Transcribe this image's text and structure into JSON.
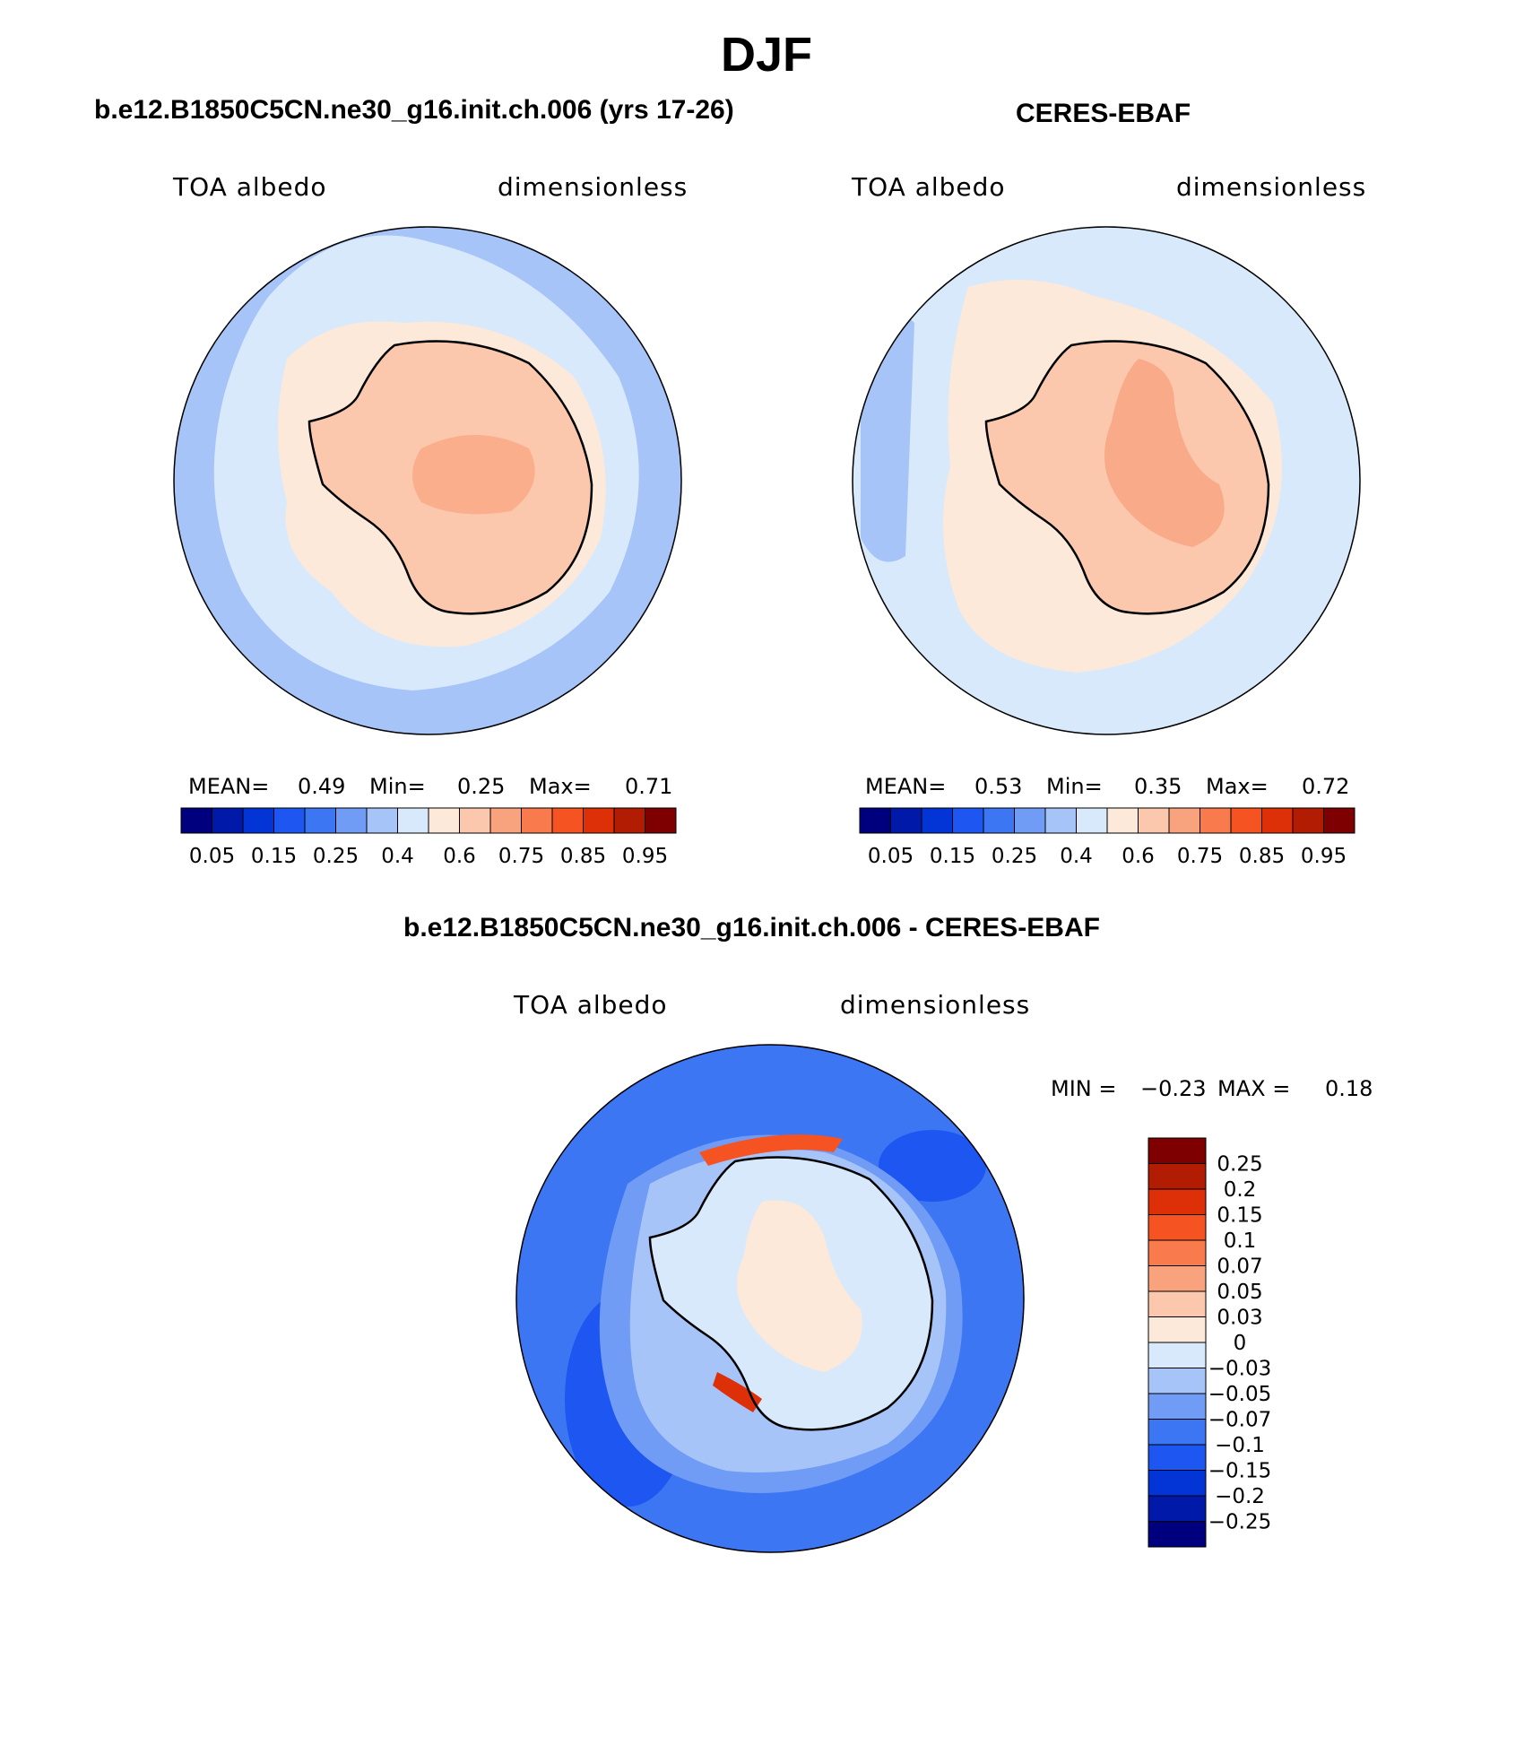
{
  "figure": {
    "title": "DJF"
  },
  "panels": [
    {
      "title": "b.e12.B1850C5CN.ne30_g16.init.ch.006 (yrs 17-26)",
      "variable": "TOA albedo",
      "units": "dimensionless",
      "stats": {
        "mean_label": "MEAN=",
        "mean": "0.49",
        "min_label": "Min=",
        "min": "0.25",
        "max_label": "Max=",
        "max": "0.71"
      }
    },
    {
      "title": "CERES-EBAF",
      "variable": "TOA albedo",
      "units": "dimensionless",
      "stats": {
        "mean_label": "MEAN=",
        "mean": "0.53",
        "min_label": "Min=",
        "min": "0.35",
        "max_label": "Max=",
        "max": "0.72"
      }
    },
    {
      "title": "b.e12.B1850C5CN.ne30_g16.init.ch.006 - CERES-EBAF",
      "variable": "TOA albedo",
      "units": "dimensionless",
      "stats": {
        "min_label": "MIN =",
        "min": "−0.23",
        "max_label": "MAX =",
        "max": "0.18"
      }
    }
  ],
  "chart_data": [
    {
      "type": "heatmap",
      "projection": "south-polar-stereographic",
      "title": "b.e12.B1850C5CN.ne30_g16.init.ch.006 (yrs 17-26)",
      "variable": "TOA albedo",
      "units": "dimensionless",
      "mean": 0.49,
      "min": 0.25,
      "max": 0.71,
      "legend_position": "bottom",
      "colorbar_ticks": [
        "0.05",
        "0.15",
        "0.25",
        "0.4",
        "0.6",
        "0.75",
        "0.85",
        "0.95"
      ],
      "colorbar_colors": [
        "#00007f",
        "#0019a8",
        "#0335d6",
        "#1d56f0",
        "#3d76f2",
        "#709cf5",
        "#a6c4f8",
        "#d8e9fb",
        "#fde9d9",
        "#fbc8ad",
        "#f9a27e",
        "#f87a4d",
        "#f65323",
        "#dd3008",
        "#b11c02",
        "#7f0000"
      ],
      "fields": {
        "open_ocean": 0.35,
        "mid_latitude_band": 0.42,
        "sea_ice_band": 0.6,
        "continent": 0.65,
        "east_antarctic_plateau": 0.71
      }
    },
    {
      "type": "heatmap",
      "projection": "south-polar-stereographic",
      "title": "CERES-EBAF",
      "variable": "TOA albedo",
      "units": "dimensionless",
      "mean": 0.53,
      "min": 0.35,
      "max": 0.72,
      "legend_position": "bottom",
      "colorbar_ticks": [
        "0.05",
        "0.15",
        "0.25",
        "0.4",
        "0.6",
        "0.75",
        "0.85",
        "0.95"
      ],
      "colorbar_colors": [
        "#00007f",
        "#0019a8",
        "#0335d6",
        "#1d56f0",
        "#3d76f2",
        "#709cf5",
        "#a6c4f8",
        "#d8e9fb",
        "#fde9d9",
        "#fbc8ad",
        "#f9a27e",
        "#f87a4d",
        "#f65323",
        "#dd3008",
        "#b11c02",
        "#7f0000"
      ],
      "fields": {
        "open_ocean": 0.42,
        "sea_ice_band": 0.55,
        "continent": 0.65,
        "east_antarctic_plateau": 0.72
      }
    },
    {
      "type": "heatmap",
      "projection": "south-polar-stereographic",
      "title": "b.e12.B1850C5CN.ne30_g16.init.ch.006 - CERES-EBAF",
      "variable": "TOA albedo",
      "units": "dimensionless",
      "min": -0.23,
      "max": 0.18,
      "legend_position": "right",
      "colorbar_ticks": [
        "0.25",
        "0.2",
        "0.15",
        "0.1",
        "0.07",
        "0.05",
        "0.03",
        "0",
        "−0.03",
        "−0.05",
        "−0.07",
        "−0.1",
        "−0.15",
        "−0.2",
        "−0.25"
      ],
      "colorbar_colors": [
        "#7f0000",
        "#b11c02",
        "#dd3008",
        "#f65323",
        "#f87a4d",
        "#f9a27e",
        "#fbc8ad",
        "#fde9d9",
        "#d8e9fb",
        "#a6c4f8",
        "#709cf5",
        "#3d76f2",
        "#1d56f0",
        "#0335d6",
        "#0019a8",
        "#00007f"
      ]
    }
  ]
}
